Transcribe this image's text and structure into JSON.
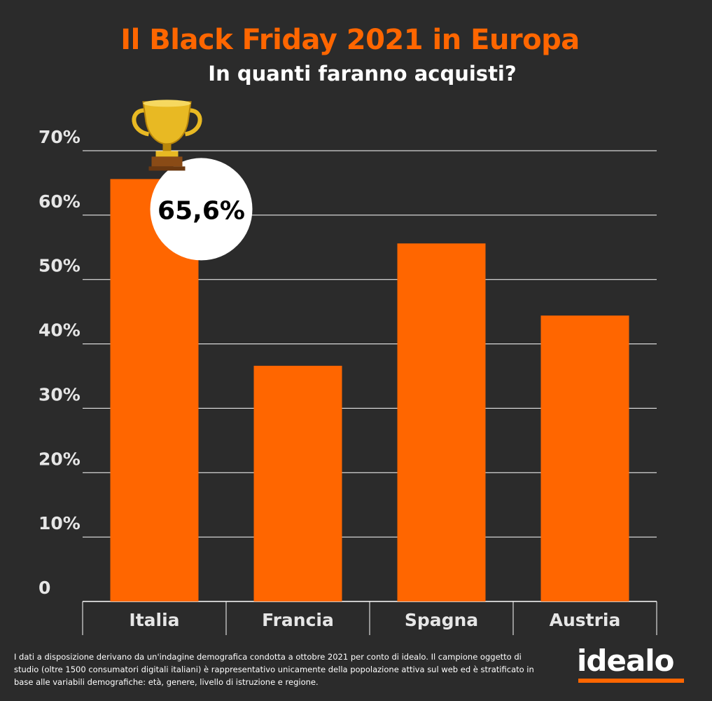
{
  "header": {
    "title": "Il Black Friday 2021 in Europa",
    "subtitle": "In quanti faranno acquisti?"
  },
  "chart_data": {
    "type": "bar",
    "categories": [
      "Italia",
      "Francia",
      "Spagna",
      "Austria"
    ],
    "values": [
      65.6,
      36.6,
      55.6,
      44.4
    ],
    "y_ticks": [
      "0",
      "10%",
      "20%",
      "30%",
      "40%",
      "50%",
      "60%",
      "70%"
    ],
    "ylim": [
      0,
      70
    ],
    "grid": true,
    "highlight": {
      "category": "Italia",
      "label": "65,6%",
      "icon": "trophy-icon"
    },
    "colors": {
      "bar": "#ff6600",
      "background": "#2b2b2b",
      "grid": "#ffffff",
      "tick_text": "#e6e6e6"
    }
  },
  "footer": {
    "note": "I dati a disposizione derivano da un'indagine demografica condotta a ottobre 2021 per conto di idealo. Il campione oggetto di studio (oltre 1500 consumatori digitali italiani) è rappresentativo unicamente della popolazione attiva sul web ed è stratificato in base alle variabili demografiche: età, genere, livello di istruzione e regione.",
    "brand": "idealo",
    "brand_color": "#ff6600"
  }
}
